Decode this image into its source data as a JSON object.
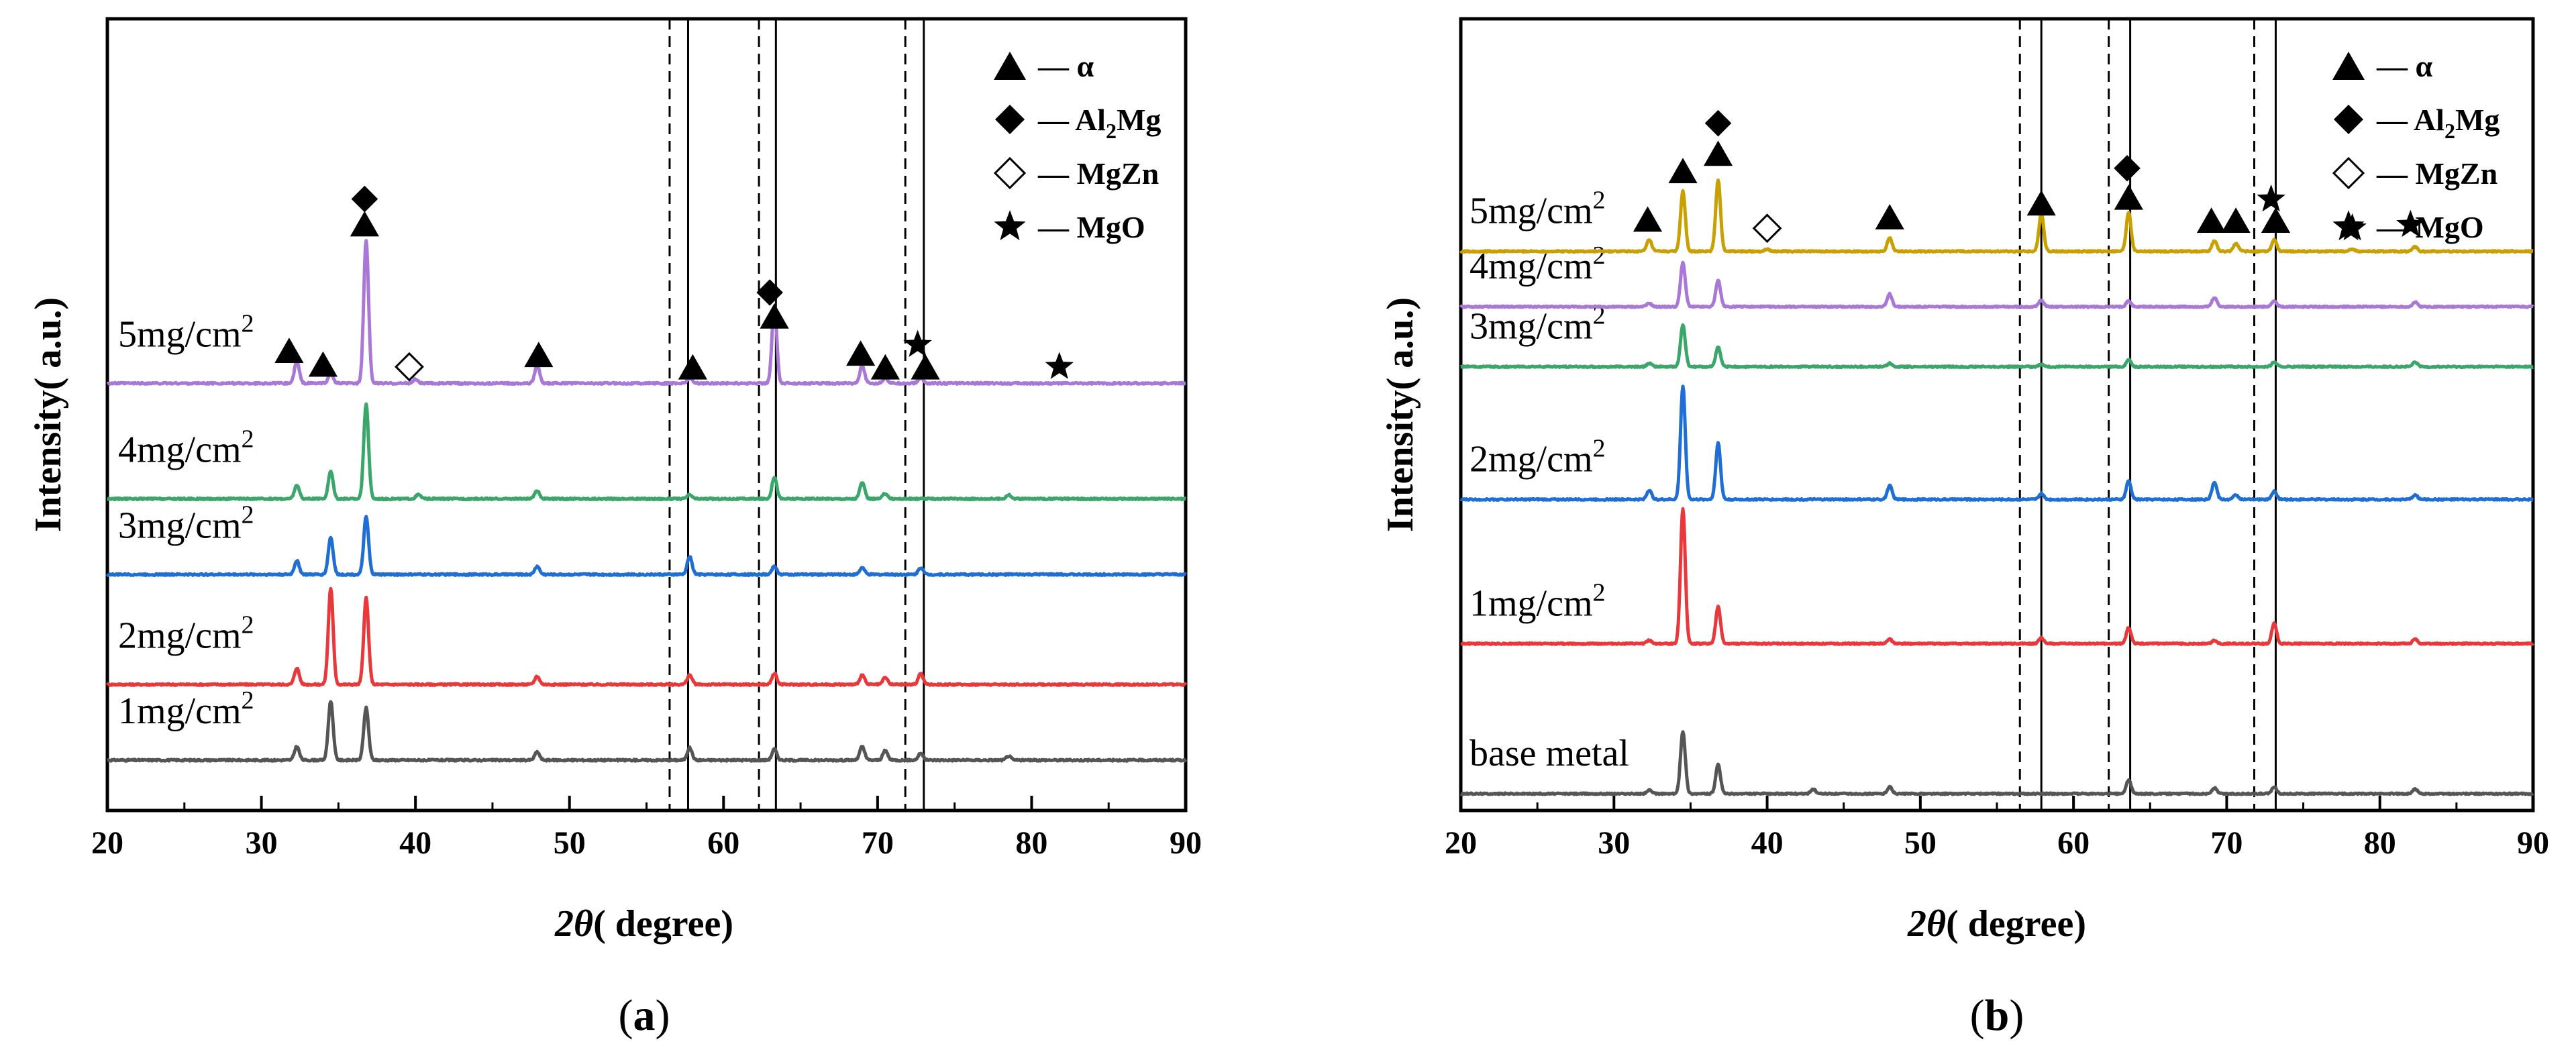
{
  "chart_data": [
    {
      "panel": "a",
      "type": "line",
      "caption": "(a)",
      "caption_letter": "a",
      "title": "",
      "xlabel": "2θ( degree)",
      "ylabel": "Intensity( a.u.)",
      "xlim": [
        20,
        90
      ],
      "xticks": [
        20,
        30,
        40,
        50,
        60,
        70,
        80,
        90
      ],
      "dashed_lines_x": [
        56.5,
        62.3,
        71.8
      ],
      "solid_lines_x": [
        57.7,
        63.4,
        73.0
      ],
      "legend_position": "top-right",
      "legend": [
        {
          "symbol": "triangle",
          "label": "α"
        },
        {
          "symbol": "diamond",
          "label": "Al2Mg",
          "base": "Al",
          "sub": "2",
          "rest": "Mg"
        },
        {
          "symbol": "open-diamond",
          "label": "MgZn"
        },
        {
          "symbol": "star",
          "label": "MgO"
        }
      ],
      "series": [
        {
          "name": "1mg/cm2",
          "label_base": "1mg/cm",
          "label_sup": "2",
          "color": "#555555",
          "baseline": 0.0,
          "peaks": [
            [
              32.3,
              0.1
            ],
            [
              34.5,
              0.43
            ],
            [
              36.8,
              0.38
            ],
            [
              47.9,
              0.06
            ],
            [
              57.8,
              0.09
            ],
            [
              63.3,
              0.08
            ],
            [
              69.0,
              0.1
            ],
            [
              70.5,
              0.07
            ],
            [
              72.8,
              0.05
            ],
            [
              78.5,
              0.03
            ]
          ]
        },
        {
          "name": "2mg/cm2",
          "label_base": "2mg/cm",
          "label_sup": "2",
          "color": "#e8383b",
          "baseline": 0.55,
          "peaks": [
            [
              32.3,
              0.12
            ],
            [
              34.5,
              0.7
            ],
            [
              36.8,
              0.63
            ],
            [
              47.9,
              0.06
            ],
            [
              57.8,
              0.07
            ],
            [
              63.3,
              0.08
            ],
            [
              69.0,
              0.07
            ],
            [
              70.5,
              0.05
            ],
            [
              72.8,
              0.08
            ]
          ]
        },
        {
          "name": "3mg/cm2",
          "label_base": "3mg/cm",
          "label_sup": "2",
          "color": "#1f6ed4",
          "baseline": 1.35,
          "peaks": [
            [
              32.3,
              0.1
            ],
            [
              34.5,
              0.27
            ],
            [
              36.8,
              0.42
            ],
            [
              47.9,
              0.06
            ],
            [
              57.8,
              0.13
            ],
            [
              63.3,
              0.06
            ],
            [
              69.0,
              0.05
            ],
            [
              72.8,
              0.05
            ]
          ]
        },
        {
          "name": "4mg/cm2",
          "label_base": "4mg/cm",
          "label_sup": "2",
          "color": "#3aa66a",
          "baseline": 1.9,
          "peaks": [
            [
              32.3,
              0.1
            ],
            [
              34.5,
              0.2
            ],
            [
              36.8,
              0.69
            ],
            [
              40.2,
              0.03
            ],
            [
              47.9,
              0.06
            ],
            [
              57.8,
              0.03
            ],
            [
              63.3,
              0.16
            ],
            [
              69.0,
              0.12
            ],
            [
              70.5,
              0.04
            ],
            [
              78.5,
              0.03
            ]
          ]
        },
        {
          "name": "5mg/cm2",
          "label_base": "5mg/cm",
          "label_sup": "2",
          "color": "#a978d6",
          "baseline": 2.74,
          "peaks": [
            [
              32.3,
              0.16
            ],
            [
              34.5,
              0.07
            ],
            [
              36.8,
              1.04
            ],
            [
              40.0,
              0.03
            ],
            [
              47.9,
              0.13
            ],
            [
              57.8,
              0.04
            ],
            [
              63.3,
              0.56
            ],
            [
              69.0,
              0.13
            ],
            [
              70.5,
              0.04
            ],
            [
              72.8,
              0.04
            ]
          ]
        }
      ],
      "markers": [
        {
          "symbol": "triangle",
          "x": 31.8,
          "y": 2.98
        },
        {
          "symbol": "triangle",
          "x": 34.0,
          "y": 2.88
        },
        {
          "symbol": "triangle",
          "x": 36.7,
          "y": 3.9
        },
        {
          "symbol": "diamond",
          "x": 36.7,
          "y": 4.08
        },
        {
          "symbol": "open-diamond",
          "x": 39.6,
          "y": 2.86
        },
        {
          "symbol": "triangle",
          "x": 48.0,
          "y": 2.95
        },
        {
          "symbol": "triangle",
          "x": 58.0,
          "y": 2.86
        },
        {
          "symbol": "diamond",
          "x": 63.0,
          "y": 3.4
        },
        {
          "symbol": "triangle",
          "x": 63.3,
          "y": 3.23
        },
        {
          "symbol": "triangle",
          "x": 68.9,
          "y": 2.96
        },
        {
          "symbol": "triangle",
          "x": 70.5,
          "y": 2.86
        },
        {
          "symbol": "star",
          "x": 72.6,
          "y": 3.02
        },
        {
          "symbol": "triangle",
          "x": 73.1,
          "y": 2.86
        },
        {
          "symbol": "star",
          "x": 81.8,
          "y": 2.86
        }
      ]
    },
    {
      "panel": "b",
      "type": "line",
      "caption": "(b)",
      "caption_letter": "b",
      "title": "",
      "xlabel": "2θ( degree)",
      "ylabel": "Intensity( a.u.)",
      "xlim": [
        20,
        90
      ],
      "xticks": [
        20,
        30,
        40,
        50,
        60,
        70,
        80,
        90
      ],
      "dashed_lines_x": [
        56.5,
        62.3,
        71.8
      ],
      "solid_lines_x": [
        57.9,
        63.7,
        73.2
      ],
      "legend_position": "top-right",
      "legend": [
        {
          "symbol": "triangle",
          "label": "α"
        },
        {
          "symbol": "diamond",
          "label": "Al2Mg",
          "base": "Al",
          "sub": "2",
          "rest": "Mg"
        },
        {
          "symbol": "open-diamond",
          "label": "MgZn"
        },
        {
          "symbol": "star",
          "label": "MgO"
        }
      ],
      "series": [
        {
          "name": "base metal",
          "label_base": "base metal",
          "label_sup": "",
          "color": "#555555",
          "baseline": 0.0,
          "peaks": [
            [
              32.3,
              0.03
            ],
            [
              34.5,
              0.54
            ],
            [
              36.8,
              0.25
            ],
            [
              43.0,
              0.04
            ],
            [
              48.0,
              0.06
            ],
            [
              63.6,
              0.12
            ],
            [
              69.2,
              0.05
            ],
            [
              73.1,
              0.06
            ],
            [
              82.3,
              0.04
            ]
          ]
        },
        {
          "name": "1mg/cm2",
          "label_base": "1mg/cm",
          "label_sup": "2",
          "color": "#e8383b",
          "baseline": 1.3,
          "peaks": [
            [
              32.3,
              0.03
            ],
            [
              34.5,
              1.17
            ],
            [
              36.8,
              0.32
            ],
            [
              48.0,
              0.04
            ],
            [
              57.9,
              0.05
            ],
            [
              63.6,
              0.14
            ],
            [
              69.2,
              0.03
            ],
            [
              73.1,
              0.18
            ],
            [
              82.3,
              0.04
            ]
          ]
        },
        {
          "name": "2mg/cm2",
          "label_base": "2mg/cm",
          "label_sup": "2",
          "color": "#1f6ed4",
          "baseline": 2.55,
          "peaks": [
            [
              32.3,
              0.08
            ],
            [
              34.5,
              0.98
            ],
            [
              36.8,
              0.49
            ],
            [
              48.0,
              0.12
            ],
            [
              57.9,
              0.05
            ],
            [
              63.6,
              0.16
            ],
            [
              69.2,
              0.15
            ],
            [
              70.6,
              0.04
            ],
            [
              73.1,
              0.07
            ],
            [
              82.3,
              0.04
            ]
          ]
        },
        {
          "name": "3mg/cm2",
          "label_base": "3mg/cm",
          "label_sup": "2",
          "color": "#3aa66a",
          "baseline": 3.7,
          "peaks": [
            [
              32.3,
              0.03
            ],
            [
              34.5,
              0.36
            ],
            [
              36.8,
              0.17
            ],
            [
              48.0,
              0.03
            ],
            [
              57.9,
              0.02
            ],
            [
              63.6,
              0.06
            ],
            [
              73.1,
              0.04
            ],
            [
              82.3,
              0.04
            ]
          ]
        },
        {
          "name": "4mg/cm2",
          "label_base": "4mg/cm",
          "label_sup": "2",
          "color": "#a978d6",
          "baseline": 4.22,
          "peaks": [
            [
              32.3,
              0.03
            ],
            [
              34.5,
              0.38
            ],
            [
              36.8,
              0.23
            ],
            [
              48.0,
              0.11
            ],
            [
              57.9,
              0.06
            ],
            [
              63.6,
              0.05
            ],
            [
              69.2,
              0.08
            ],
            [
              73.1,
              0.05
            ],
            [
              82.3,
              0.04
            ]
          ]
        },
        {
          "name": "5mg/cm2",
          "label_base": "5mg/cm",
          "label_sup": "2",
          "color": "#c8a000",
          "baseline": 4.7,
          "peaks": [
            [
              32.3,
              0.1
            ],
            [
              34.5,
              0.52
            ],
            [
              36.8,
              0.62
            ],
            [
              40.0,
              0.02
            ],
            [
              48.0,
              0.12
            ],
            [
              57.9,
              0.33
            ],
            [
              63.6,
              0.34
            ],
            [
              69.2,
              0.09
            ],
            [
              70.6,
              0.07
            ],
            [
              73.1,
              0.1
            ],
            [
              78.2,
              0.02
            ],
            [
              82.3,
              0.04
            ]
          ]
        }
      ],
      "markers": [
        {
          "symbol": "triangle",
          "x": 32.2,
          "y": 4.98
        },
        {
          "symbol": "triangle",
          "x": 34.5,
          "y": 5.4
        },
        {
          "symbol": "triangle",
          "x": 36.8,
          "y": 5.55
        },
        {
          "symbol": "diamond",
          "x": 36.8,
          "y": 5.81
        },
        {
          "symbol": "open-diamond",
          "x": 40.0,
          "y": 4.9
        },
        {
          "symbol": "triangle",
          "x": 48.0,
          "y": 5.0
        },
        {
          "symbol": "triangle",
          "x": 57.9,
          "y": 5.12
        },
        {
          "symbol": "diamond",
          "x": 63.5,
          "y": 5.42
        },
        {
          "symbol": "triangle",
          "x": 63.6,
          "y": 5.17
        },
        {
          "symbol": "triangle",
          "x": 69.0,
          "y": 4.97
        },
        {
          "symbol": "triangle",
          "x": 70.6,
          "y": 4.97
        },
        {
          "symbol": "star",
          "x": 72.9,
          "y": 5.15
        },
        {
          "symbol": "triangle",
          "x": 73.2,
          "y": 4.97
        },
        {
          "symbol": "star",
          "x": 78.2,
          "y": 4.9
        },
        {
          "symbol": "star",
          "x": 82.0,
          "y": 4.93
        }
      ]
    }
  ]
}
